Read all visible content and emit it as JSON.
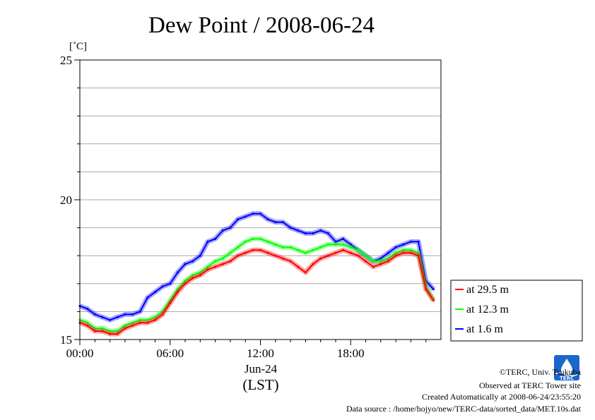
{
  "chart_data": {
    "type": "line",
    "title": "Dew Point / 2008-06-24",
    "unit_label": "[˚C]",
    "xlabel_line1": "Jun-24",
    "xlabel_line2": "(LST)",
    "xlim": [
      0,
      24
    ],
    "ylim": [
      15,
      25
    ],
    "x_ticks": [
      {
        "value": 0,
        "label": "00:00"
      },
      {
        "value": 6,
        "label": "06:00"
      },
      {
        "value": 12,
        "label": "12:00"
      },
      {
        "value": 18,
        "label": "18:00"
      }
    ],
    "y_ticks": [
      {
        "value": 15,
        "label": "15"
      },
      {
        "value": 20,
        "label": "20"
      },
      {
        "value": 25,
        "label": "25"
      }
    ],
    "grid": true,
    "grid_step": 1,
    "legend_position": "right",
    "x": [
      0,
      0.5,
      1,
      1.5,
      2,
      2.5,
      3,
      3.5,
      4,
      4.5,
      5,
      5.5,
      6,
      6.5,
      7,
      7.5,
      8,
      8.5,
      9,
      9.5,
      10,
      10.5,
      11,
      11.5,
      12,
      12.5,
      13,
      13.5,
      14,
      14.5,
      15,
      15.5,
      16,
      16.5,
      17,
      17.5,
      18,
      18.5,
      19,
      19.5,
      20,
      20.5,
      21,
      21.5,
      22,
      22.5,
      23,
      23.5
    ],
    "series": [
      {
        "name": "at 29.5 m",
        "color": "#ff0000",
        "values": [
          15.6,
          15.5,
          15.3,
          15.3,
          15.2,
          15.2,
          15.4,
          15.5,
          15.6,
          15.6,
          15.7,
          15.9,
          16.3,
          16.7,
          17.0,
          17.2,
          17.3,
          17.5,
          17.6,
          17.7,
          17.8,
          18.0,
          18.1,
          18.2,
          18.2,
          18.1,
          18.0,
          17.9,
          17.8,
          17.6,
          17.4,
          17.7,
          17.9,
          18.0,
          18.1,
          18.2,
          18.1,
          18.0,
          17.8,
          17.6,
          17.7,
          17.8,
          18.0,
          18.1,
          18.1,
          18.0,
          16.8,
          16.4
        ]
      },
      {
        "name": "at 12.3 m",
        "color": "#00ff00",
        "values": [
          15.7,
          15.6,
          15.4,
          15.4,
          15.3,
          15.3,
          15.5,
          15.6,
          15.7,
          15.7,
          15.8,
          16.0,
          16.4,
          16.8,
          17.1,
          17.3,
          17.4,
          17.6,
          17.8,
          17.9,
          18.1,
          18.3,
          18.5,
          18.6,
          18.6,
          18.5,
          18.4,
          18.3,
          18.3,
          18.2,
          18.1,
          18.2,
          18.3,
          18.4,
          18.4,
          18.4,
          18.3,
          18.2,
          18.0,
          17.8,
          17.8,
          17.9,
          18.1,
          18.2,
          18.2,
          18.1,
          16.9,
          16.4
        ]
      },
      {
        "name": "at 1.6 m",
        "color": "#0000ff",
        "values": [
          16.2,
          16.1,
          15.9,
          15.8,
          15.7,
          15.8,
          15.9,
          15.9,
          16.0,
          16.5,
          16.7,
          16.9,
          17.0,
          17.4,
          17.7,
          17.8,
          18.0,
          18.5,
          18.6,
          18.9,
          19.0,
          19.3,
          19.4,
          19.5,
          19.5,
          19.3,
          19.2,
          19.2,
          19.0,
          18.9,
          18.8,
          18.8,
          18.9,
          18.8,
          18.5,
          18.6,
          18.4,
          18.2,
          18.0,
          17.8,
          17.9,
          18.1,
          18.3,
          18.4,
          18.5,
          18.5,
          17.1,
          16.8
        ]
      }
    ]
  },
  "footer": {
    "copyright": "©TERC, Univ. Tsukuba",
    "observed": "Observed at TERC Tower site",
    "created": "Created Automatically at 2008-06-24/23:55:20",
    "source": "Data source : /home/hojyo/new/TERC-data/sorted_data/MET.10s.dat"
  },
  "logo": {
    "text": "TERC",
    "color": "#1a66cc"
  }
}
